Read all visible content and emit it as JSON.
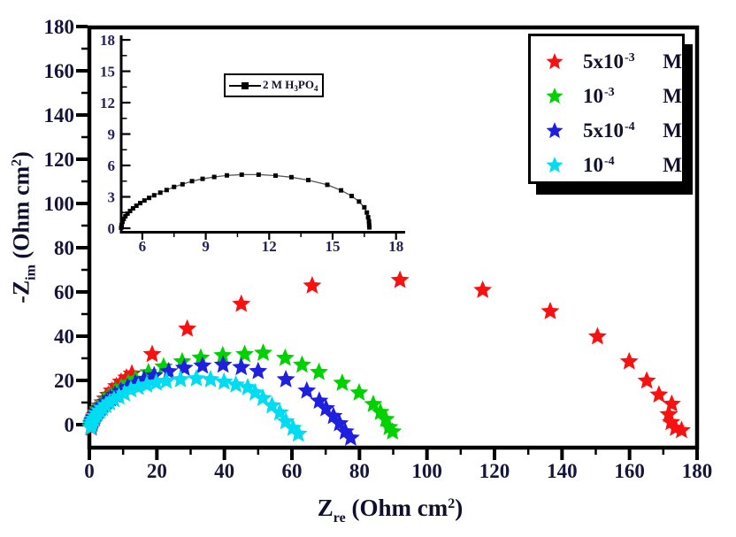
{
  "figure": {
    "background": "#ffffff",
    "axis_color": "#000000",
    "tick_label_color": "#15153a"
  },
  "axes": {
    "x_label": {
      "pre": "Z",
      "sub": "re",
      "mid": " (Ohm cm",
      "sup": "2",
      "end": ")"
    },
    "y_label": {
      "pre": "-Z",
      "sub": "im",
      "mid": " (Ohm cm",
      "sup": "2",
      "end": ")"
    }
  },
  "legend": {
    "position": "top-right",
    "items": [
      {
        "color": "#f71111",
        "base": "5x10",
        "sup": "-3",
        "unit": "M"
      },
      {
        "color": "#00d200",
        "base": "10",
        "sup": "-3",
        "unit": "M"
      },
      {
        "color": "#1f1fe0",
        "base": "5x10",
        "sup": "-4",
        "unit": "M"
      },
      {
        "color": "#00ddf2",
        "base": "10",
        "sup": "-4",
        "unit": "M"
      }
    ]
  },
  "inset_legend": {
    "pre": "2 M H",
    "sub1": "3",
    "mid": "PO",
    "sub2": "4"
  },
  "chart_data": [
    {
      "id": "main",
      "type": "scatter",
      "marker": "star",
      "title": "",
      "xlabel": "Z_re (Ohm cm^2)",
      "ylabel": "-Z_im (Ohm cm^2)",
      "xlim": [
        0,
        180
      ],
      "ylim": [
        -11,
        180
      ],
      "x_major_ticks": [
        0,
        20,
        40,
        60,
        80,
        100,
        120,
        140,
        160,
        180
      ],
      "y_major_ticks": [
        0,
        20,
        40,
        60,
        80,
        100,
        120,
        140,
        160,
        180
      ],
      "minor_tick_step": 10,
      "grid": false,
      "legend_position": "top-right",
      "series": [
        {
          "name": "5x10^-3 M",
          "color": "#f71111",
          "points": [
            [
              0.6,
              -1.5
            ],
            [
              0.8,
              0.3
            ],
            [
              1.0,
              1.5
            ],
            [
              1.3,
              2.8
            ],
            [
              1.7,
              4.2
            ],
            [
              2.1,
              5.6
            ],
            [
              2.6,
              7.0
            ],
            [
              3.2,
              8.5
            ],
            [
              3.9,
              10.0
            ],
            [
              4.7,
              11.7
            ],
            [
              5.6,
              13.4
            ],
            [
              6.7,
              15.3
            ],
            [
              8.0,
              17.3
            ],
            [
              9.4,
              19.3
            ],
            [
              11.0,
              21.2
            ],
            [
              12.6,
              23.0
            ],
            [
              18.6,
              31.8
            ],
            [
              29.0,
              43.3
            ],
            [
              45.0,
              54.5
            ],
            [
              66.0,
              62.8
            ],
            [
              92.0,
              65.3
            ],
            [
              116.5,
              60.8
            ],
            [
              136.5,
              51.2
            ],
            [
              150.5,
              39.8
            ],
            [
              159.9,
              28.5
            ],
            [
              165.1,
              19.8
            ],
            [
              168.7,
              13.5
            ],
            [
              172.5,
              9.3
            ],
            [
              171.6,
              4.6
            ],
            [
              172.3,
              1.0
            ],
            [
              173.6,
              -1.6
            ],
            [
              175.4,
              -2.6
            ]
          ]
        },
        {
          "name": "10^-3 M",
          "color": "#00d200",
          "points": [
            [
              0.5,
              -0.5
            ],
            [
              0.8,
              1.0
            ],
            [
              1.1,
              2.3
            ],
            [
              1.5,
              3.7
            ],
            [
              2.0,
              5.1
            ],
            [
              2.6,
              6.5
            ],
            [
              3.3,
              8.0
            ],
            [
              4.2,
              9.6
            ],
            [
              5.2,
              11.2
            ],
            [
              6.4,
              13.0
            ],
            [
              7.8,
              14.9
            ],
            [
              9.5,
              16.8
            ],
            [
              11.5,
              18.7
            ],
            [
              13.7,
              20.6
            ],
            [
              17.5,
              23.6
            ],
            [
              22.0,
              26.2
            ],
            [
              27.5,
              28.5
            ],
            [
              33.0,
              30.2
            ],
            [
              39.5,
              31.3
            ],
            [
              46.0,
              31.8
            ],
            [
              51.5,
              32.4
            ],
            [
              58.0,
              30.1
            ],
            [
              63.0,
              27.0
            ],
            [
              68.0,
              23.7
            ],
            [
              74.9,
              18.8
            ],
            [
              79.9,
              14.4
            ],
            [
              84.1,
              9.2
            ],
            [
              86.2,
              5.6
            ],
            [
              87.8,
              2.4
            ],
            [
              88.8,
              -1.2
            ],
            [
              89.8,
              -3.2
            ]
          ]
        },
        {
          "name": "5x10^-4 M",
          "color": "#1f1fe0",
          "points": [
            [
              0.5,
              -0.8
            ],
            [
              0.7,
              0.5
            ],
            [
              1.0,
              1.8
            ],
            [
              1.4,
              3.2
            ],
            [
              1.9,
              4.6
            ],
            [
              2.5,
              6.0
            ],
            [
              3.2,
              7.4
            ],
            [
              4.0,
              8.8
            ],
            [
              5.0,
              10.3
            ],
            [
              6.2,
              11.8
            ],
            [
              7.6,
              13.4
            ],
            [
              9.3,
              15.0
            ],
            [
              11.3,
              16.8
            ],
            [
              13.6,
              18.6
            ],
            [
              16.2,
              20.4
            ],
            [
              19.2,
              22.2
            ],
            [
              23.5,
              24.0
            ],
            [
              28.1,
              25.6
            ],
            [
              33.5,
              26.6
            ],
            [
              39.6,
              27.0
            ],
            [
              45.0,
              25.9
            ],
            [
              50.0,
              24.1
            ],
            [
              58.2,
              20.4
            ],
            [
              64.4,
              15.3
            ],
            [
              68.1,
              10.7
            ],
            [
              70.1,
              7.3
            ],
            [
              72.3,
              3.8
            ],
            [
              74.1,
              0.5
            ],
            [
              75.8,
              -3.2
            ],
            [
              77.4,
              -6.0
            ]
          ]
        },
        {
          "name": "10^-4 M",
          "color": "#00ddf2",
          "points": [
            [
              0.4,
              -1.2
            ],
            [
              0.6,
              0.1
            ],
            [
              0.9,
              1.3
            ],
            [
              1.3,
              2.5
            ],
            [
              1.8,
              3.8
            ],
            [
              2.4,
              5.0
            ],
            [
              3.1,
              6.2
            ],
            [
              3.9,
              7.4
            ],
            [
              4.9,
              8.7
            ],
            [
              6.0,
              10.0
            ],
            [
              7.3,
              11.3
            ],
            [
              8.8,
              12.6
            ],
            [
              10.4,
              14.0
            ],
            [
              12.3,
              15.8
            ],
            [
              14.5,
              16.9
            ],
            [
              17.0,
              18.0
            ],
            [
              19.8,
              18.9
            ],
            [
              22.8,
              19.7
            ],
            [
              27.0,
              20.4
            ],
            [
              31.7,
              20.8
            ],
            [
              35.9,
              20.4
            ],
            [
              39.9,
              19.3
            ],
            [
              43.4,
              18.0
            ],
            [
              46.9,
              16.8
            ],
            [
              49.1,
              14.4
            ],
            [
              51.4,
              11.9
            ],
            [
              54.1,
              8.6
            ],
            [
              56.4,
              5.4
            ],
            [
              58.2,
              1.4
            ],
            [
              60.3,
              -1.6
            ],
            [
              61.9,
              -4.2
            ]
          ]
        }
      ]
    },
    {
      "id": "inset",
      "type": "line",
      "marker": "square",
      "legend": "2 M H3PO4",
      "xlim": [
        5,
        18.4
      ],
      "ylim": [
        0,
        18.9
      ],
      "x_major_ticks": [
        6,
        9,
        12,
        15,
        18
      ],
      "y_major_ticks": [
        0,
        3,
        6,
        9,
        12,
        15,
        18
      ],
      "minor_tick_step": 1.5,
      "grid": false,
      "series": [
        {
          "name": "2 M H3PO4",
          "color": "#000000",
          "points": [
            [
              5.0,
              0.05
            ],
            [
              5.02,
              0.3
            ],
            [
              5.06,
              0.6
            ],
            [
              5.12,
              0.9
            ],
            [
              5.2,
              1.15
            ],
            [
              5.3,
              1.4
            ],
            [
              5.42,
              1.65
            ],
            [
              5.56,
              1.9
            ],
            [
              5.72,
              2.15
            ],
            [
              5.9,
              2.4
            ],
            [
              6.1,
              2.65
            ],
            [
              6.32,
              2.9
            ],
            [
              6.56,
              3.15
            ],
            [
              6.85,
              3.4
            ],
            [
              7.15,
              3.65
            ],
            [
              7.5,
              3.95
            ],
            [
              7.9,
              4.2
            ],
            [
              8.35,
              4.5
            ],
            [
              8.85,
              4.72
            ],
            [
              9.4,
              4.9
            ],
            [
              10.0,
              5.05
            ],
            [
              10.7,
              5.12
            ],
            [
              11.5,
              5.12
            ],
            [
              12.3,
              5.03
            ],
            [
              13.05,
              4.88
            ],
            [
              13.85,
              4.6
            ],
            [
              14.75,
              4.15
            ],
            [
              15.4,
              3.62
            ],
            [
              15.9,
              3.08
            ],
            [
              16.25,
              2.55
            ],
            [
              16.5,
              2.0
            ],
            [
              16.62,
              1.5
            ],
            [
              16.68,
              1.05
            ],
            [
              16.72,
              0.65
            ],
            [
              16.73,
              0.3
            ],
            [
              16.74,
              0.08
            ]
          ]
        }
      ]
    }
  ]
}
